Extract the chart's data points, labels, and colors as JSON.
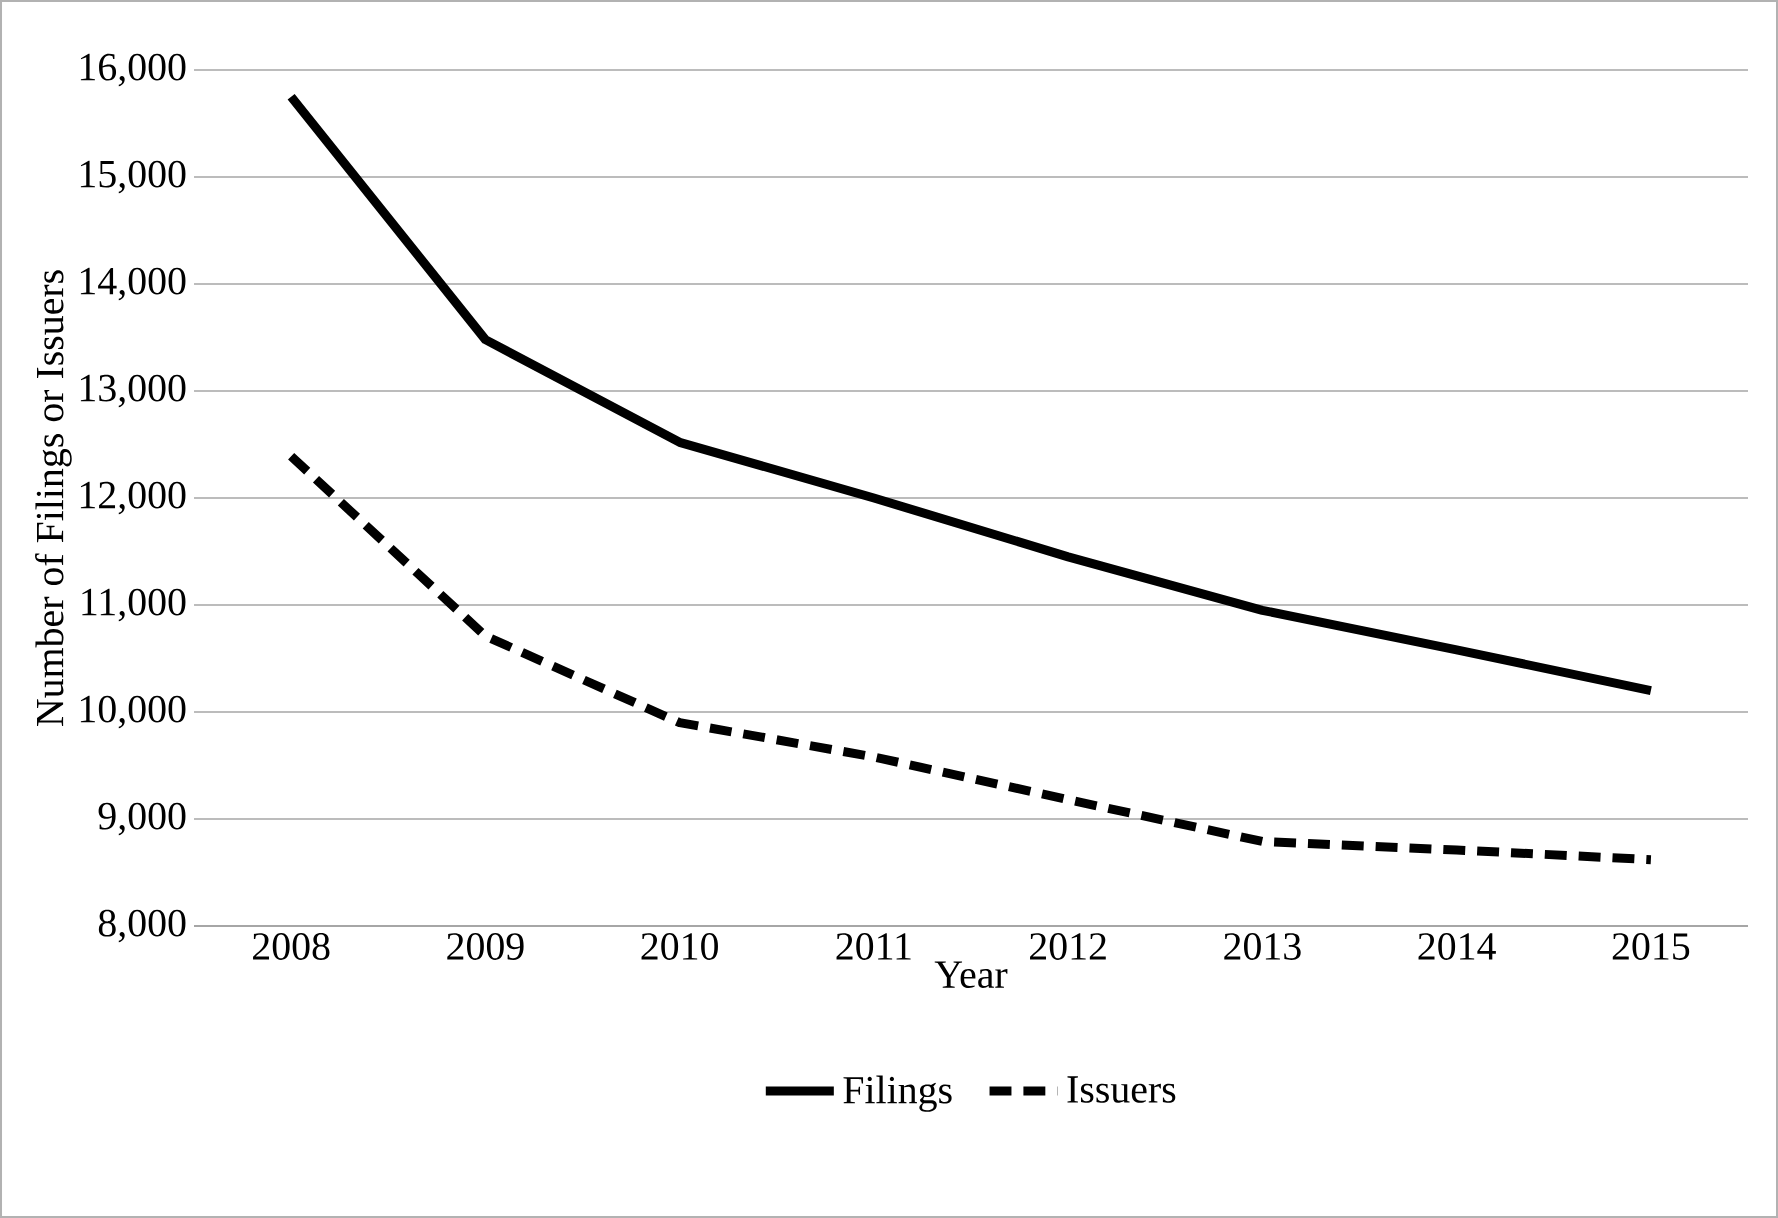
{
  "chart_data": {
    "type": "line",
    "xlabel": "Year",
    "ylabel": "Number of Filings or Issuers",
    "categories": [
      "2008",
      "2009",
      "2010",
      "2011",
      "2012",
      "2013",
      "2014",
      "2015"
    ],
    "series": [
      {
        "name": "Filings",
        "color": "#000000",
        "line_style": "solid",
        "values": [
          15750,
          13480,
          12520,
          12000,
          11450,
          10950,
          10580,
          10200
        ]
      },
      {
        "name": "Issuers",
        "color": "#000000",
        "line_style": "dashed",
        "values": [
          12390,
          10710,
          9900,
          9580,
          9180,
          8790,
          8710,
          8620
        ]
      }
    ],
    "ylim": [
      8000,
      16000
    ],
    "yticks": [
      {
        "value": 8000,
        "label": "8,000"
      },
      {
        "value": 9000,
        "label": "9,000"
      },
      {
        "value": 10000,
        "label": "10,000"
      },
      {
        "value": 11000,
        "label": "11,000"
      },
      {
        "value": 12000,
        "label": "12,000"
      },
      {
        "value": 13000,
        "label": "13,000"
      },
      {
        "value": 14000,
        "label": "14,000"
      },
      {
        "value": 15000,
        "label": "15,000"
      },
      {
        "value": 16000,
        "label": "16,000"
      }
    ],
    "grid": "y",
    "legend": "bottom",
    "marker": "none"
  }
}
